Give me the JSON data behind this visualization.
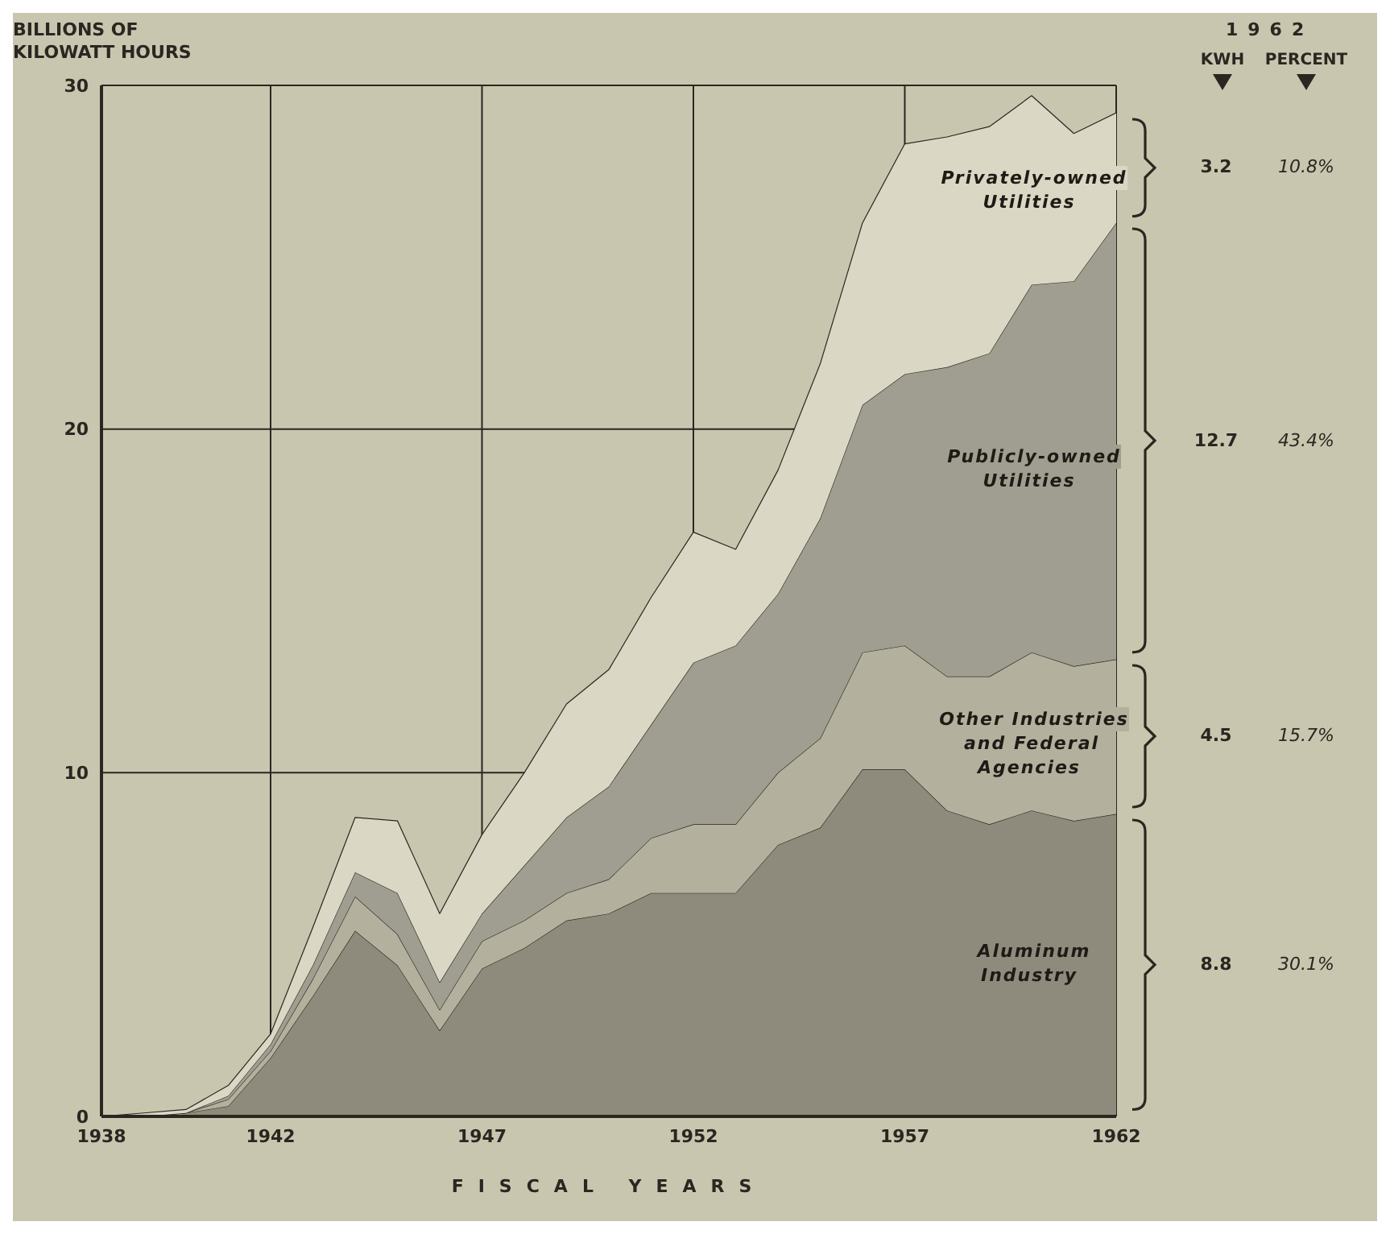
{
  "chart_data": {
    "type": "area",
    "stacked": true,
    "ylabel": "BILLIONS OF KILOWATT HOURS",
    "xlabel": "FISCAL YEARS",
    "x": [
      1938,
      1939,
      1940,
      1941,
      1942,
      1943,
      1944,
      1945,
      1946,
      1947,
      1948,
      1949,
      1950,
      1951,
      1952,
      1953,
      1954,
      1955,
      1956,
      1957,
      1958,
      1959,
      1960,
      1961,
      1962
    ],
    "series": [
      {
        "name": "Aluminum Industry",
        "color": "#8e8b7c",
        "values": [
          0,
          0,
          0.1,
          0.3,
          1.7,
          3.5,
          5.4,
          4.4,
          2.5,
          4.3,
          4.9,
          5.7,
          5.9,
          6.5,
          6.5,
          6.5,
          7.9,
          8.4,
          10.1,
          10.1,
          8.9,
          8.5,
          8.9,
          8.6,
          8.8
        ]
      },
      {
        "name": "Other Industries and Federal Agencies",
        "color": "#b3b09d",
        "values": [
          0,
          0,
          0,
          0.2,
          0.2,
          0.5,
          1.0,
          0.9,
          0.6,
          0.8,
          0.8,
          0.8,
          1.0,
          1.6,
          2.0,
          2.0,
          2.1,
          2.6,
          3.4,
          3.6,
          3.9,
          4.3,
          4.6,
          4.5,
          4.5
        ]
      },
      {
        "name": "Publicly-owned Utilities",
        "color": "#a09e90",
        "values": [
          0,
          0,
          0,
          0.1,
          0.2,
          0.4,
          0.7,
          1.2,
          0.8,
          0.8,
          1.6,
          2.2,
          2.7,
          3.3,
          4.7,
          5.2,
          5.2,
          6.4,
          7.2,
          7.9,
          9.0,
          9.4,
          10.7,
          11.2,
          12.7
        ]
      },
      {
        "name": "Privately-owned Utilities",
        "color": "#dad7c4",
        "values": [
          0,
          0.1,
          0.1,
          0.3,
          0.3,
          1.1,
          1.6,
          2.1,
          2.0,
          2.3,
          2.7,
          3.3,
          3.4,
          3.7,
          3.8,
          2.8,
          3.6,
          4.5,
          5.3,
          6.7,
          6.7,
          6.6,
          5.5,
          4.3,
          3.2
        ]
      }
    ],
    "xlim": [
      1938,
      1962
    ],
    "xticks": [
      1938,
      1942,
      1947,
      1952,
      1957,
      1962
    ],
    "ylim": [
      0,
      30
    ],
    "yticks": [
      0,
      10,
      20,
      30
    ],
    "grid": true,
    "legend": false,
    "annotations": [
      "1962",
      "KWH",
      "PERCENT",
      "8.8",
      "4.5",
      "12.7",
      "3.2",
      "30.1%",
      "15.7%",
      "43.4%",
      "10.8%"
    ]
  }
}
